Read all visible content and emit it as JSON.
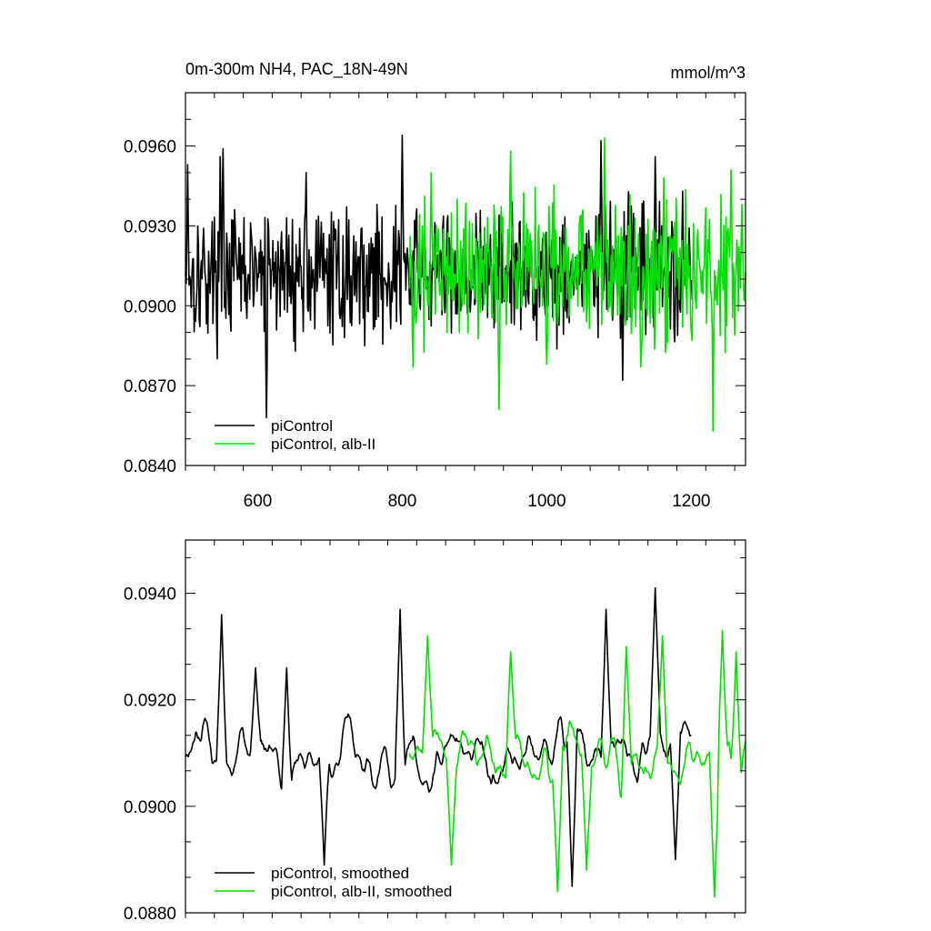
{
  "figure": {
    "title_left": "0m-300m NH4, PAC_18N-49N",
    "title_right": "mmol/m^3"
  },
  "colors": {
    "piControl": "#000000",
    "albII": "#00e000"
  },
  "chart_data": [
    {
      "type": "line",
      "title": "0m-300m NH4, PAC_18N-49N",
      "units": "mmol/m^3",
      "xlim": [
        500,
        1275
      ],
      "ylim": [
        0.084,
        0.098
      ],
      "xticks": [
        600,
        800,
        1000,
        1200
      ],
      "xtick_labels": [
        "600",
        "800",
        "1000",
        "1200"
      ],
      "yticks": [
        0.084,
        0.087,
        0.09,
        0.093,
        0.096
      ],
      "ytick_labels": [
        "0.0840",
        "0.0870",
        "0.0900",
        "0.0930",
        "0.0960"
      ],
      "grid": false,
      "legend_position": "bottom-left",
      "series": [
        {
          "name": "piControl",
          "color": "#000000",
          "x_start": 500,
          "x_end": 1200,
          "y_min": 0.0858,
          "y_max": 0.0964,
          "y_mean": 0.0912,
          "spikes": [
            [
              503,
              0.0953
            ],
            [
              548,
              0.0956
            ],
            [
              552,
              0.0959
            ],
            [
              612,
              0.0858
            ],
            [
              667,
              0.095
            ],
            [
              800,
              0.0964
            ],
            [
              1075,
              0.0962
            ],
            [
              1105,
              0.0872
            ],
            [
              1150,
              0.0956
            ],
            [
              1188,
              0.0943
            ]
          ]
        },
        {
          "name": "piControl, alb-II",
          "color": "#00e000",
          "x_start": 810,
          "x_end": 1275,
          "y_min": 0.0853,
          "y_max": 0.0963,
          "y_mean": 0.0913,
          "spikes": [
            [
              815,
              0.0877
            ],
            [
              840,
              0.095
            ],
            [
              934,
              0.0861
            ],
            [
              950,
              0.0958
            ],
            [
              1000,
              0.0878
            ],
            [
              1080,
              0.0963
            ],
            [
              1130,
              0.0877
            ],
            [
              1162,
              0.0948
            ],
            [
              1200,
              0.089
            ],
            [
              1230,
              0.0853
            ],
            [
              1255,
              0.0951
            ],
            [
              1270,
              0.0938
            ]
          ]
        }
      ]
    },
    {
      "type": "line",
      "title": "",
      "xlim": [
        500,
        1275
      ],
      "ylim": [
        0.088,
        0.095
      ],
      "xticks": [
        600,
        800,
        1000,
        1200
      ],
      "xtick_labels": [
        "",
        "",
        "",
        ""
      ],
      "yticks": [
        0.088,
        0.09,
        0.092,
        0.094
      ],
      "ytick_labels": [
        "0.0880",
        "0.0900",
        "0.0920",
        "0.0940"
      ],
      "grid": false,
      "legend_position": "bottom-left",
      "series": [
        {
          "name": "piControl, smoothed",
          "color": "#000000",
          "x_start": 500,
          "x_end": 1200,
          "y_min": 0.0885,
          "y_max": 0.0941,
          "y_mean": 0.091,
          "spikes": [
            [
              550,
              0.0936
            ],
            [
              597,
              0.0926
            ],
            [
              640,
              0.0926
            ],
            [
              692,
              0.0889
            ],
            [
              797,
              0.0937
            ],
            [
              1035,
              0.0885
            ],
            [
              1082,
              0.0937
            ],
            [
              1150,
              0.0941
            ],
            [
              1178,
              0.089
            ]
          ]
        },
        {
          "name": "piControl, alb-II, smoothed",
          "color": "#00e000",
          "x_start": 810,
          "x_end": 1275,
          "y_min": 0.0883,
          "y_max": 0.0933,
          "y_mean": 0.091,
          "spikes": [
            [
              835,
              0.0932
            ],
            [
              868,
              0.0889
            ],
            [
              950,
              0.0929
            ],
            [
              1015,
              0.0884
            ],
            [
              1055,
              0.0888
            ],
            [
              1110,
              0.093
            ],
            [
              1160,
              0.0932
            ],
            [
              1232,
              0.0883
            ],
            [
              1243,
              0.0933
            ],
            [
              1262,
              0.0929
            ]
          ]
        }
      ]
    }
  ]
}
